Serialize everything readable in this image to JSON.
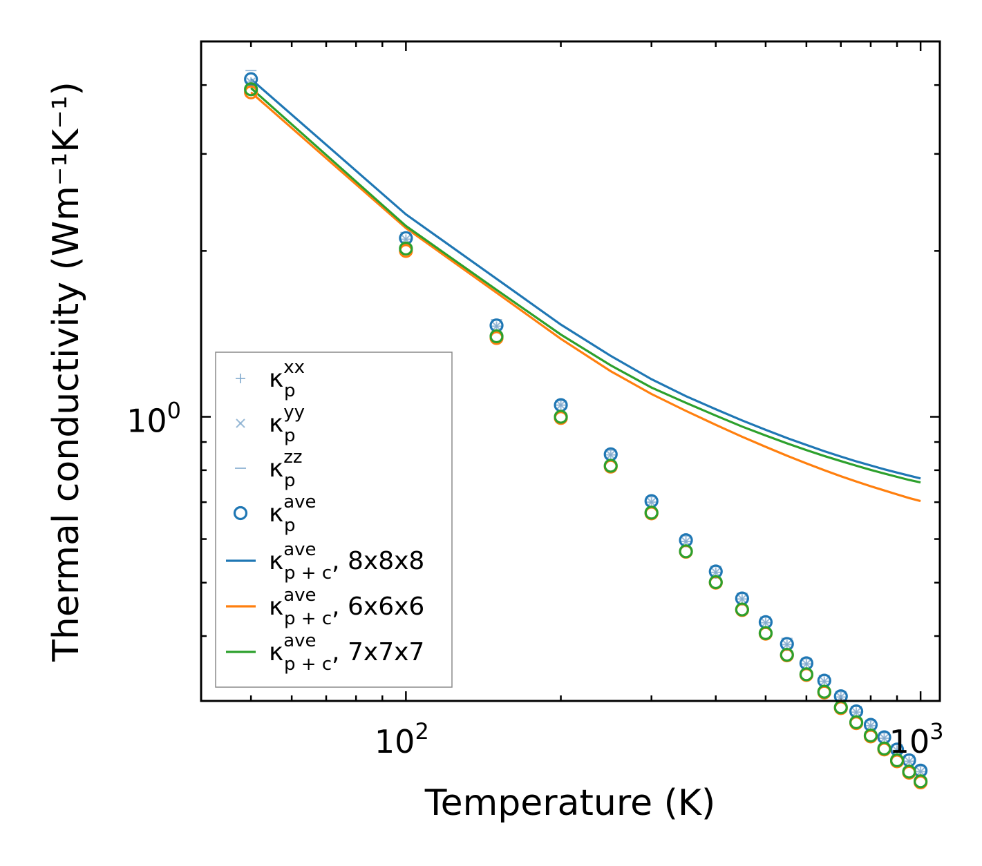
{
  "chart_data": {
    "type": "scatter",
    "xscale": "log",
    "yscale": "log",
    "xlabel": "Temperature (K)",
    "ylabel": "Thermal conductivity (Wm⁻¹K⁻¹)",
    "xlim": [
      40,
      1090
    ],
    "ylim": [
      0.305,
      4.8
    ],
    "x_tick_labels": [
      {
        "base": "10",
        "exp": "2",
        "value": 100
      },
      {
        "base": "10",
        "exp": "3",
        "value": 1000
      }
    ],
    "y_tick_labels": [
      {
        "base": "10",
        "exp": "0",
        "value": 1
      }
    ],
    "temperatures": [
      50,
      100,
      150,
      200,
      250,
      300,
      350,
      400,
      450,
      500,
      550,
      600,
      650,
      700,
      750,
      800,
      850,
      900,
      950,
      1000
    ],
    "point_series": [
      {
        "name": "kappa_p_xx",
        "marker": "plus",
        "color": "#7fa9cd",
        "values": [
          4.05,
          2.1,
          1.46,
          1.05,
          0.853,
          0.7,
          0.594,
          0.522,
          0.467,
          0.423,
          0.386,
          0.356,
          0.331,
          0.31,
          0.291,
          0.275,
          0.261,
          0.248,
          0.237,
          0.227
        ]
      },
      {
        "name": "kappa_p_yy",
        "marker": "cross",
        "color": "#7fa9cd",
        "values": [
          4.05,
          2.1,
          1.46,
          1.05,
          0.853,
          0.7,
          0.594,
          0.522,
          0.467,
          0.423,
          0.386,
          0.356,
          0.331,
          0.31,
          0.291,
          0.275,
          0.261,
          0.248,
          0.237,
          0.227
        ]
      },
      {
        "name": "kappa_p_zz",
        "marker": "dash",
        "color": "#7fa9cd",
        "values": [
          4.25,
          2.16,
          1.5,
          1.07,
          0.87,
          0.716,
          0.608,
          0.535,
          0.478,
          0.433,
          0.396,
          0.364,
          0.339,
          0.317,
          0.298,
          0.281,
          0.267,
          0.254,
          0.243,
          0.232
        ]
      },
      {
        "name": "kappa_p_ave_8",
        "marker": "circle",
        "color": "#1f77b4",
        "values": [
          4.1,
          2.11,
          1.465,
          1.05,
          0.855,
          0.703,
          0.597,
          0.524,
          0.468,
          0.424,
          0.387,
          0.357,
          0.332,
          0.311,
          0.292,
          0.276,
          0.262,
          0.249,
          0.238,
          0.228
        ]
      },
      {
        "name": "kappa_p_ave_6",
        "marker": "circle",
        "color": "#ff7f0e",
        "values": [
          3.88,
          2.0,
          1.39,
          0.995,
          0.812,
          0.668,
          0.569,
          0.5,
          0.446,
          0.404,
          0.369,
          0.34,
          0.316,
          0.296,
          0.278,
          0.263,
          0.249,
          0.237,
          0.226,
          0.217
        ]
      },
      {
        "name": "kappa_p_ave_7",
        "marker": "circle",
        "color": "#2ca02c",
        "values": [
          3.93,
          2.02,
          1.4,
          1.0,
          0.815,
          0.67,
          0.57,
          0.501,
          0.447,
          0.405,
          0.37,
          0.341,
          0.317,
          0.297,
          0.279,
          0.264,
          0.25,
          0.238,
          0.227,
          0.218
        ]
      }
    ],
    "line_series": [
      {
        "name": "kappa_pc_ave_8x8x8",
        "color": "#1f77b4",
        "values": [
          4.1,
          2.33,
          1.78,
          1.47,
          1.29,
          1.17,
          1.09,
          1.032,
          0.985,
          0.947,
          0.915,
          0.889,
          0.866,
          0.847,
          0.83,
          0.816,
          0.803,
          0.792,
          0.782,
          0.773
        ]
      },
      {
        "name": "kappa_pc_ave_6x6x6",
        "color": "#ff7f0e",
        "values": [
          3.88,
          2.2,
          1.68,
          1.385,
          1.21,
          1.1,
          1.025,
          0.967,
          0.92,
          0.882,
          0.85,
          0.823,
          0.8,
          0.78,
          0.763,
          0.748,
          0.735,
          0.723,
          0.712,
          0.703
        ]
      },
      {
        "name": "kappa_pc_ave_7x7x7",
        "color": "#2ca02c",
        "values": [
          3.95,
          2.22,
          1.7,
          1.41,
          1.24,
          1.13,
          1.06,
          1.005,
          0.96,
          0.925,
          0.895,
          0.87,
          0.849,
          0.831,
          0.815,
          0.801,
          0.789,
          0.778,
          0.768,
          0.76
        ]
      }
    ],
    "legend": {
      "position": "lower-left",
      "entries": [
        {
          "symbol": "plus",
          "color": "#7fa9cd",
          "base": "κ",
          "sup": "xx",
          "sub": "p",
          "suffix": ""
        },
        {
          "symbol": "cross",
          "color": "#7fa9cd",
          "base": "κ",
          "sup": "yy",
          "sub": "p",
          "suffix": ""
        },
        {
          "symbol": "dash",
          "color": "#7fa9cd",
          "base": "κ",
          "sup": "zz",
          "sub": "p",
          "suffix": ""
        },
        {
          "symbol": "circle",
          "color": "#1f77b4",
          "base": "κ",
          "sup": "ave",
          "sub": "p",
          "suffix": ""
        },
        {
          "symbol": "line",
          "color": "#1f77b4",
          "base": "κ",
          "sup": "ave",
          "sub": "p + c",
          "suffix": ", 8x8x8"
        },
        {
          "symbol": "line",
          "color": "#ff7f0e",
          "base": "κ",
          "sup": "ave",
          "sub": "p + c",
          "suffix": ", 6x6x6"
        },
        {
          "symbol": "line",
          "color": "#2ca02c",
          "base": "κ",
          "sup": "ave",
          "sub": "p + c",
          "suffix": ", 7x7x7"
        }
      ]
    }
  }
}
